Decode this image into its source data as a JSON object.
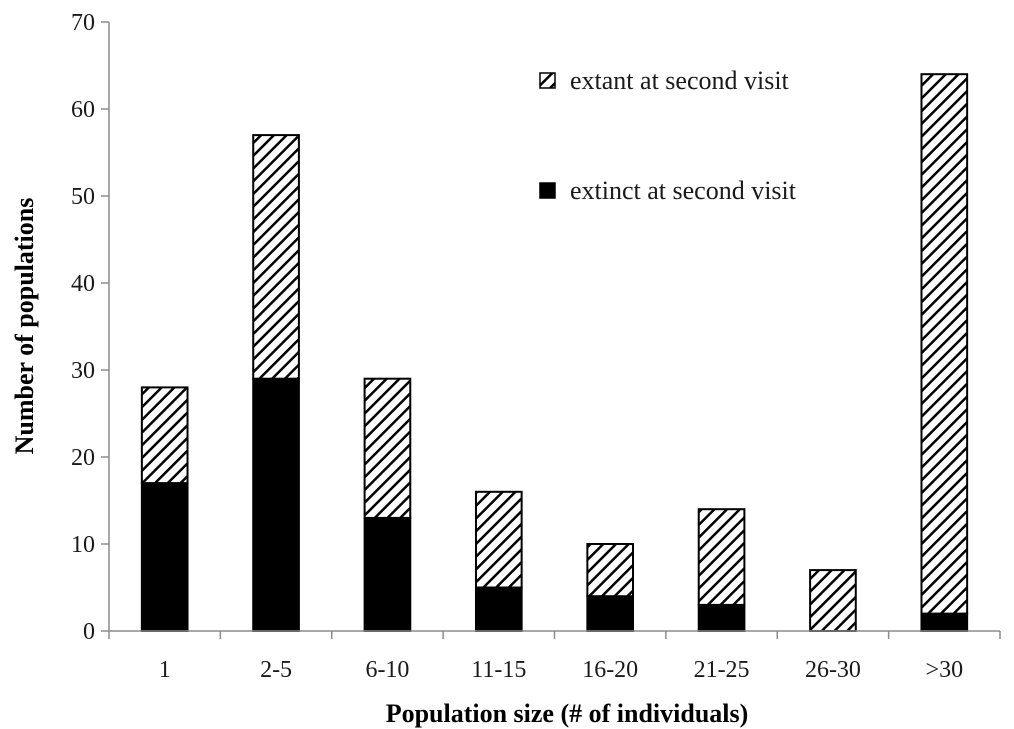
{
  "chart_data": {
    "type": "bar",
    "stacked": true,
    "title": "",
    "xlabel": "Population size (# of individuals)",
    "ylabel": "Number of populations",
    "ylim": [
      0,
      70
    ],
    "yticks": [
      0,
      10,
      20,
      30,
      40,
      50,
      60,
      70
    ],
    "grid": false,
    "legend_position": "top-right",
    "categories": [
      "1",
      "2-5",
      "6-10",
      "11-15",
      "16-20",
      "21-25",
      "26-30",
      ">30"
    ],
    "series": [
      {
        "name": "extinct at second visit",
        "values": [
          17,
          29,
          13,
          5,
          4,
          3,
          0,
          2
        ],
        "fill": "solid",
        "color": "#000000"
      },
      {
        "name": "extant at second visit",
        "values": [
          11,
          28,
          16,
          11,
          6,
          11,
          7,
          62
        ],
        "fill": "hatched",
        "color": "#000000"
      }
    ],
    "legend_order": [
      1,
      0
    ]
  }
}
